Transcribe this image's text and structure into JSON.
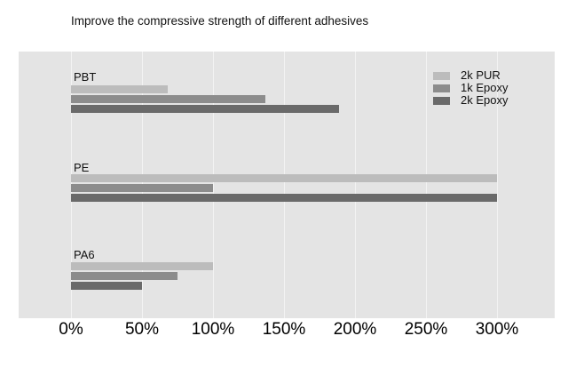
{
  "title": "Improve the compressive strength of different adhesives",
  "chart_data": {
    "type": "bar",
    "orientation": "horizontal",
    "title": "Improve the compressive strength of different adhesives",
    "categories": [
      "PBT",
      "PE",
      "PA6"
    ],
    "series": [
      {
        "name": "2k PUR",
        "color": "#bcbcbc",
        "values": [
          68,
          300,
          100
        ]
      },
      {
        "name": "1k Epoxy",
        "color": "#8c8c8c",
        "values": [
          137,
          100,
          75
        ]
      },
      {
        "name": "2k Epoxy",
        "color": "#6a6a6a",
        "values": [
          189,
          300,
          50
        ]
      }
    ],
    "xlabel": "",
    "ylabel": "",
    "xlim": [
      0,
      300
    ],
    "x_tick_step": 50,
    "x_ticks": [
      "0%",
      "50%",
      "100%",
      "150%",
      "200%",
      "250%",
      "300%"
    ],
    "grid": "vertical",
    "legend_position": "top-right",
    "plot_background": "#e4e4e4"
  }
}
